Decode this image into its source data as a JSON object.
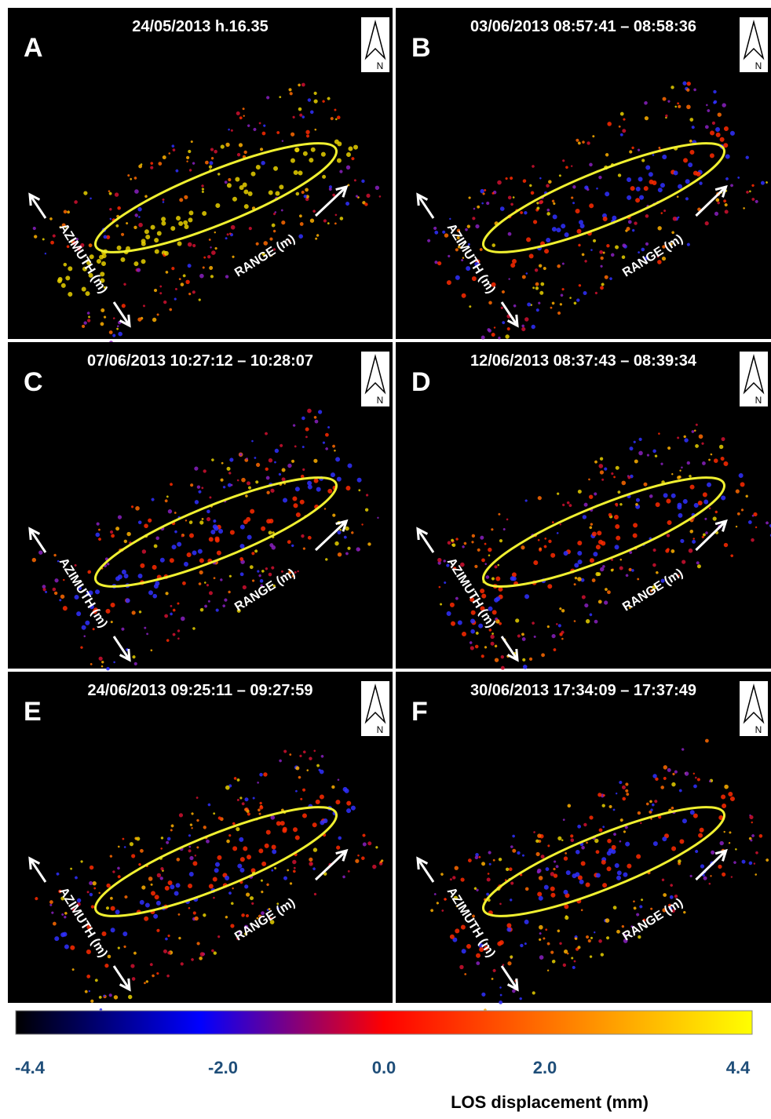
{
  "panels": [
    {
      "letter": "A",
      "timestamp": "24/05/2013 h.16.35",
      "range_label": "RANGE (m)",
      "azimuth_label": "AZIMUTH (m)",
      "north_label": "N"
    },
    {
      "letter": "B",
      "timestamp": "03/06/2013 08:57:41 – 08:58:36",
      "range_label": "RANGE (m)",
      "azimuth_label": "AZIMUTH (m)",
      "north_label": "N"
    },
    {
      "letter": "C",
      "timestamp": "07/06/2013 10:27:12 – 10:28:07",
      "range_label": "RANGE (m)",
      "azimuth_label": "AZIMUTH (m)",
      "north_label": "N"
    },
    {
      "letter": "D",
      "timestamp": "12/06/2013 08:37:43 – 08:39:34",
      "range_label": "RANGE (m)",
      "azimuth_label": "AZIMUTH (m)",
      "north_label": "N"
    },
    {
      "letter": "E",
      "timestamp": "24/06/2013 09:25:11 – 09:27:59",
      "range_label": "RANGE (m)",
      "azimuth_label": "AZIMUTH (m)",
      "north_label": "N"
    },
    {
      "letter": "F",
      "timestamp": "30/06/2013 17:34:09 – 17:37:49",
      "range_label": "RANGE (m)",
      "azimuth_label": "AZIMUTH (m)",
      "north_label": "N"
    }
  ],
  "colorbar": {
    "label": "LOS displacement (mm)",
    "lim": [
      -4.4,
      4.4
    ],
    "colors": [
      "#000000",
      "#0000ff",
      "#ff0000",
      "#ff8000",
      "#ffff00"
    ],
    "ticks": [
      {
        "value": -4.4,
        "label": "-4.4"
      },
      {
        "value": -2.0,
        "label": "-2.0"
      },
      {
        "value": 0,
        "label": "0.0"
      },
      {
        "value": 2.0,
        "label": "2.0"
      },
      {
        "value": 4.4,
        "label": "4.4"
      }
    ]
  }
}
